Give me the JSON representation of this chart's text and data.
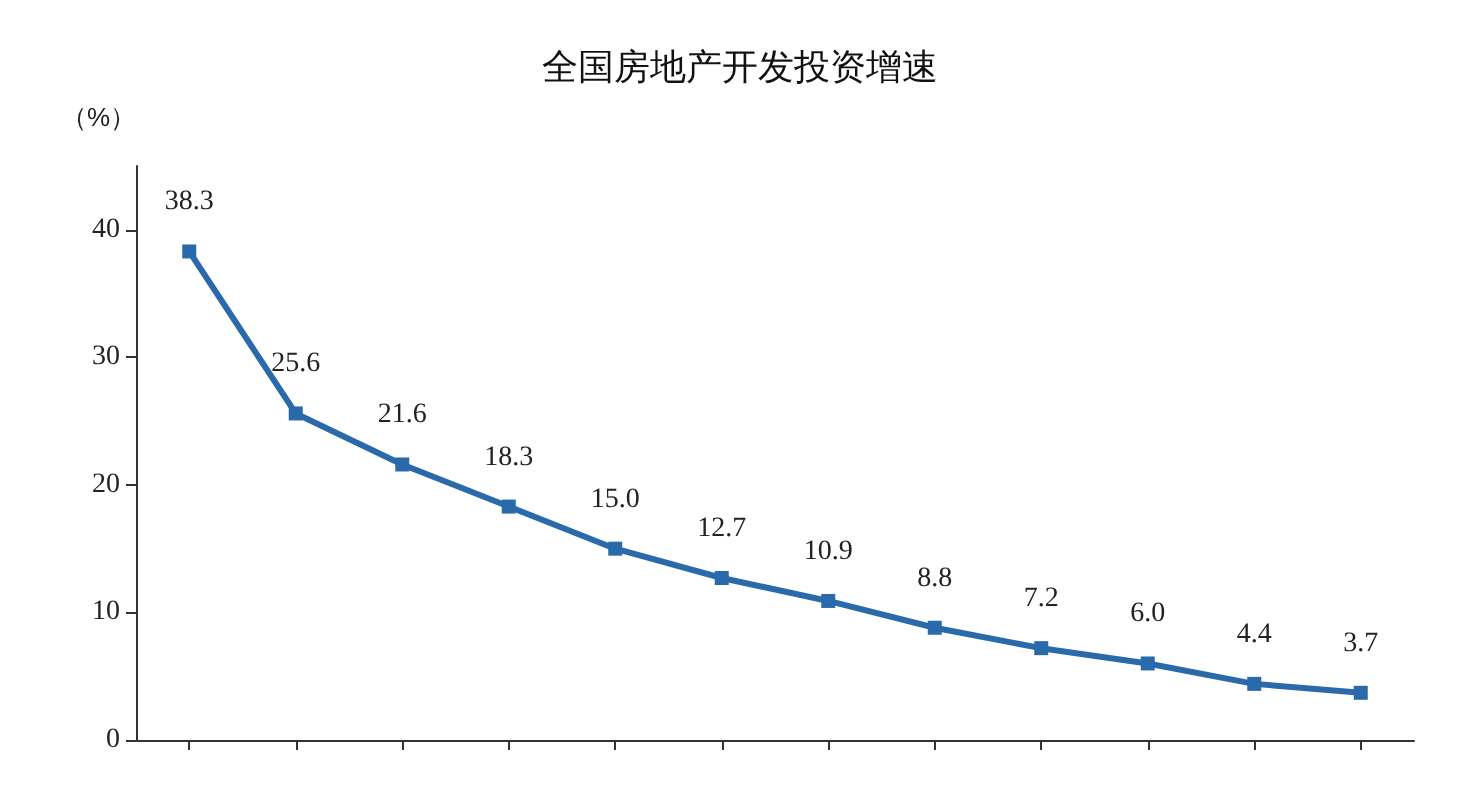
{
  "chart_data": {
    "type": "line",
    "title": "全国房地产开发投资增速",
    "ylabel": "（%）",
    "categories": [
      null,
      null,
      null,
      null,
      null,
      null,
      null,
      null,
      null,
      null,
      null,
      null
    ],
    "series": [
      {
        "color": "#2a6aaa",
        "values": [
          38.3,
          25.6,
          21.6,
          18.3,
          15.0,
          12.7,
          10.9,
          8.8,
          7.2,
          6.0,
          4.4,
          3.7
        ],
        "value_labels": [
          "38.3",
          "25.6",
          "21.6",
          "18.3",
          "15.0",
          "12.7",
          "10.9",
          "8.8",
          "7.2",
          "6.0",
          "4.4",
          "3.7"
        ]
      }
    ],
    "ylim": [
      0,
      45
    ],
    "yticks": [
      0,
      10,
      20,
      30,
      40
    ],
    "grid": false,
    "marker": "square",
    "line_style": "solid"
  }
}
